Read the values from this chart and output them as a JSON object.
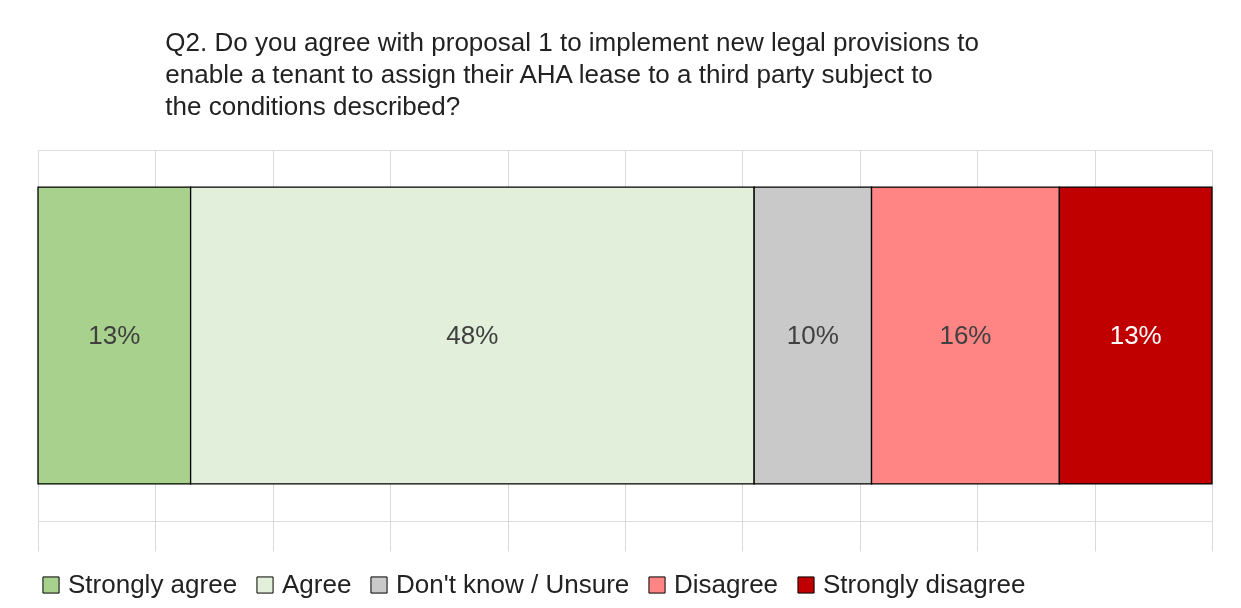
{
  "chart_data": {
    "type": "bar",
    "orientation": "horizontal",
    "stacked": true,
    "title": "Q2. Do you agree with proposal 1 to implement new legal provisions to enable a tenant to assign their AHA lease to a third party subject to the conditions described?",
    "categories": [
      null
    ],
    "series": [
      {
        "name": "Strongly agree",
        "color": "#a9d18e",
        "values": [
          13
        ],
        "value_labels": [
          "13%"
        ]
      },
      {
        "name": "Agree",
        "color": "#e2efda",
        "values": [
          48
        ],
        "value_labels": [
          "48%"
        ]
      },
      {
        "name": "Don't know / Unsure",
        "color": "#c9c9c9",
        "values": [
          10
        ],
        "value_labels": [
          "10%"
        ]
      },
      {
        "name": "Disagree",
        "color": "#ff8585",
        "values": [
          16
        ],
        "value_labels": [
          "16%"
        ]
      },
      {
        "name": "Strongly disagree",
        "color": "#c00000",
        "values": [
          13
        ],
        "value_labels": [
          "13%"
        ]
      }
    ],
    "xlim": [
      0,
      100
    ],
    "xticks": [
      0,
      10,
      20,
      30,
      40,
      50,
      60,
      70,
      80,
      90,
      100
    ],
    "tick_labels": false,
    "grid": "x",
    "legend": "bottom"
  }
}
